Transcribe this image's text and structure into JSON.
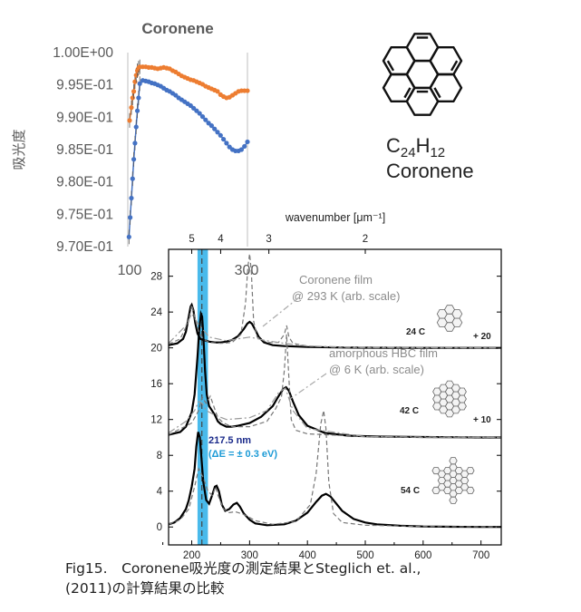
{
  "chart_data": [
    {
      "type": "scatter",
      "title": "Coronene",
      "xlabel": "",
      "ylabel": "吸光度",
      "xlim": [
        100,
        300
      ],
      "ylim": [
        0.97,
        1.0
      ],
      "x_ticks": [
        "100",
        "300"
      ],
      "y_ticks": [
        "1.00E+00",
        "9.95E-01",
        "9.90E-01",
        "9.85E-01",
        "9.80E-01",
        "9.75E-01",
        "9.70E-01"
      ],
      "series": [
        {
          "color": "#ed7d31",
          "x": [
            103,
            106,
            108,
            110,
            112,
            114,
            116,
            118,
            120,
            125,
            130,
            135,
            140,
            145,
            150,
            155,
            160,
            165,
            170,
            175,
            180,
            185,
            190,
            195,
            200,
            205,
            210,
            215,
            220,
            225,
            230,
            235,
            240,
            245,
            250,
            255,
            260,
            265,
            270,
            275,
            280,
            285,
            290,
            295,
            300
          ],
          "y": [
            0.9895,
            0.9915,
            0.993,
            0.994,
            0.9955,
            0.9965,
            0.9972,
            0.9976,
            0.9978,
            0.9978,
            0.9978,
            0.9977,
            0.9977,
            0.9976,
            0.9975,
            0.9976,
            0.9977,
            0.9976,
            0.9975,
            0.9972,
            0.997,
            0.9967,
            0.9964,
            0.9962,
            0.996,
            0.9958,
            0.9957,
            0.9955,
            0.9953,
            0.9951,
            0.9948,
            0.9946,
            0.9944,
            0.9942,
            0.994,
            0.9935,
            0.9932,
            0.993,
            0.9931,
            0.9934,
            0.9937,
            0.994,
            0.9941,
            0.9941,
            0.9941
          ]
        },
        {
          "color": "#4472c4",
          "x": [
            102,
            104,
            106,
            108,
            110,
            112,
            114,
            116,
            118,
            120,
            125,
            130,
            135,
            140,
            145,
            150,
            155,
            160,
            165,
            170,
            175,
            180,
            185,
            190,
            195,
            200,
            205,
            210,
            215,
            220,
            225,
            230,
            235,
            240,
            245,
            250,
            255,
            260,
            265,
            270,
            275,
            280,
            285,
            290,
            295,
            300
          ],
          "y": [
            0.9715,
            0.9745,
            0.9775,
            0.9805,
            0.9835,
            0.986,
            0.9885,
            0.991,
            0.993,
            0.9952,
            0.9957,
            0.9956,
            0.9955,
            0.9953,
            0.9952,
            0.995,
            0.9948,
            0.9945,
            0.9942,
            0.994,
            0.9937,
            0.9934,
            0.993,
            0.9927,
            0.9924,
            0.9921,
            0.9918,
            0.9914,
            0.991,
            0.9906,
            0.9901,
            0.9896,
            0.9891,
            0.9887,
            0.9882,
            0.9877,
            0.9872,
            0.9866,
            0.986,
            0.9854,
            0.985,
            0.9848,
            0.9848,
            0.985,
            0.9855,
            0.9862
          ]
        }
      ]
    },
    {
      "type": "line",
      "xlabel": "",
      "top_axis_label": "wavenumber [μm⁻¹]",
      "xlim": [
        160,
        735
      ],
      "ylim": [
        -2,
        31
      ],
      "x_ticks": [
        200,
        300,
        400,
        500,
        600,
        700
      ],
      "y_ticks": [
        0,
        4,
        8,
        12,
        16,
        20,
        24,
        28
      ],
      "top_ticks": [
        {
          "label": "5",
          "wn": 5
        },
        {
          "label": "4",
          "wn": 4
        },
        {
          "label": "3",
          "wn": 3
        },
        {
          "label": "2",
          "wn": 2
        }
      ],
      "highlight_band": [
        210,
        228
      ],
      "dashed_marker_x": 217.5,
      "band_label": "217.5 nm",
      "band_sublabel": "(ΔE = ± 0.3 eV)",
      "annotations": [
        {
          "text": "Coronene film",
          "line2": "@ 293 K (arb. scale)"
        },
        {
          "text": "amorphous HBC film",
          "line2": "@ 6 K (arb. scale)"
        }
      ],
      "series": [
        {
          "name": "24 C",
          "offset_label": "+ 20",
          "offset": 20,
          "style": "solid",
          "color": "#000000",
          "x": [
            160,
            175,
            185,
            190,
            195,
            198,
            200,
            203,
            206,
            210,
            215,
            220,
            225,
            230,
            240,
            250,
            260,
            270,
            280,
            290,
            296,
            300,
            304,
            310,
            316,
            325,
            340,
            360,
            400,
            450,
            500,
            550,
            600,
            650,
            700,
            735
          ],
          "y": [
            0.3,
            0.5,
            1.0,
            1.8,
            3.5,
            4.6,
            4.8,
            4.2,
            2.8,
            1.6,
            1.0,
            0.9,
            0.8,
            0.7,
            0.6,
            0.6,
            0.7,
            0.9,
            1.3,
            2.1,
            2.7,
            2.9,
            2.7,
            2.0,
            1.2,
            0.6,
            0.3,
            0.2,
            0.1,
            0.05,
            0.02,
            0.01,
            0.0,
            0.0,
            0.0,
            0.0
          ]
        },
        {
          "name": "42 C",
          "offset_label": "+ 10",
          "offset": 10,
          "style": "solid",
          "color": "#000000",
          "x": [
            160,
            180,
            190,
            200,
            205,
            210,
            213,
            216,
            218,
            220,
            223,
            226,
            230,
            235,
            240,
            245,
            250,
            260,
            270,
            280,
            300,
            320,
            340,
            350,
            358,
            363,
            368,
            375,
            385,
            400,
            430,
            470,
            520,
            600,
            700,
            735
          ],
          "y": [
            0.3,
            0.6,
            1.2,
            2.8,
            4.8,
            9.0,
            12.0,
            13.8,
            13.5,
            11.5,
            7.5,
            4.8,
            3.5,
            3.0,
            2.5,
            1.8,
            1.5,
            1.2,
            1.2,
            1.3,
            1.6,
            2.3,
            3.5,
            4.6,
            5.4,
            5.6,
            5.2,
            4.0,
            2.5,
            1.3,
            0.5,
            0.2,
            0.1,
            0.05,
            0.0,
            0.0
          ]
        },
        {
          "name": "54 C",
          "style": "solid",
          "color": "#000000",
          "x": [
            160,
            170,
            180,
            190,
            195,
            200,
            205,
            208,
            211,
            214,
            217,
            220,
            225,
            230,
            235,
            240,
            243,
            247,
            252,
            258,
            265,
            272,
            278,
            283,
            290,
            300,
            310,
            330,
            360,
            380,
            400,
            415,
            425,
            432,
            440,
            450,
            460,
            480,
            500,
            520,
            560,
            600,
            650,
            700,
            735
          ],
          "y": [
            0.3,
            0.5,
            1.0,
            2.0,
            3.0,
            4.5,
            6.5,
            9.0,
            10.6,
            10.0,
            7.5,
            5.0,
            3.0,
            2.6,
            3.5,
            4.5,
            4.6,
            4.0,
            2.5,
            1.8,
            2.0,
            2.5,
            2.7,
            2.3,
            1.5,
            0.8,
            0.4,
            0.2,
            0.3,
            0.7,
            1.6,
            2.8,
            3.5,
            3.7,
            3.4,
            2.6,
            1.8,
            0.9,
            0.5,
            0.3,
            0.15,
            0.05,
            0.02,
            0.0,
            0.0
          ]
        },
        {
          "name": "Coronene film @ 293 K",
          "style": "dashed",
          "color": "#777777",
          "offset": 20,
          "x": [
            160,
            180,
            195,
            200,
            205,
            212,
            220,
            230,
            250,
            270,
            285,
            293,
            297,
            300,
            303,
            307,
            313,
            330,
            350,
            360,
            364,
            368,
            375,
            400,
            450,
            500,
            600,
            735
          ],
          "y": [
            0.4,
            1.0,
            3.0,
            4.8,
            3.5,
            1.8,
            1.0,
            0.6,
            0.5,
            0.6,
            1.5,
            5.0,
            9.0,
            10.5,
            8.5,
            3.0,
            1.2,
            0.6,
            0.6,
            1.5,
            2.5,
            1.2,
            0.5,
            0.2,
            0.05,
            0.02,
            0.0,
            0.0
          ]
        },
        {
          "name": "amorphous HBC film @ 6 K",
          "style": "dashed",
          "color": "#777777",
          "offset": 10,
          "x": [
            160,
            200,
            212,
            218,
            225,
            232,
            238,
            245,
            255,
            270,
            300,
            330,
            345,
            355,
            360,
            364,
            368,
            372,
            380,
            400,
            500,
            600,
            735
          ],
          "y": [
            0.3,
            1.6,
            3.0,
            4.5,
            3.8,
            4.6,
            3.5,
            2.2,
            1.6,
            1.2,
            1.2,
            1.8,
            3.2,
            4.5,
            7.5,
            11.5,
            6.5,
            2.0,
            0.8,
            0.4,
            0.1,
            0.0,
            0.0
          ]
        },
        {
          "name": "54 C (dashed)",
          "style": "dashed",
          "color": "#777777",
          "offset": 0,
          "x": [
            160,
            180,
            195,
            205,
            212,
            220,
            228,
            236,
            241,
            245,
            255,
            265,
            275,
            290,
            310,
            340,
            380,
            405,
            415,
            423,
            428,
            432,
            437,
            445,
            460,
            500,
            600,
            735
          ],
          "y": [
            0.3,
            0.8,
            2.0,
            4.5,
            6.5,
            5.5,
            4.0,
            3.5,
            4.5,
            3.6,
            2.0,
            1.6,
            1.7,
            1.4,
            0.7,
            0.3,
            0.6,
            2.5,
            6.0,
            11.5,
            13.0,
            11.0,
            5.0,
            1.5,
            0.5,
            0.2,
            0.05,
            0.0
          ]
        },
        {
          "name": "dash-dot",
          "style": "dashdot",
          "color": "#999999",
          "offset": 20,
          "x": [
            160,
            190,
            200,
            210,
            230,
            260,
            300,
            330,
            360,
            400,
            500,
            735
          ],
          "y": [
            0.5,
            2.5,
            3.8,
            2.8,
            1.2,
            0.8,
            1.2,
            0.8,
            0.5,
            0.2,
            0.05,
            0.0
          ]
        },
        {
          "name": "dash-dot-42",
          "style": "dashdot",
          "color": "#999999",
          "offset": 10,
          "x": [
            160,
            190,
            205,
            212,
            218,
            225,
            240,
            260,
            300,
            330,
            350,
            362,
            375,
            400,
            500,
            735
          ],
          "y": [
            0.5,
            1.8,
            3.0,
            4.0,
            3.8,
            3.0,
            2.5,
            2.0,
            2.2,
            3.0,
            5.0,
            5.5,
            3.0,
            1.0,
            0.1,
            0.0
          ]
        }
      ]
    }
  ],
  "molecule": {
    "formula_c": "C",
    "formula_c_sub": "24",
    "formula_h": "H",
    "formula_h_sub": "12",
    "name": "Coronene"
  },
  "caption": {
    "line1": "Fig15.　Coronene吸光度の測定結果とSteglich et. al.,",
    "line2": "(2011)の計算結果の比較"
  }
}
